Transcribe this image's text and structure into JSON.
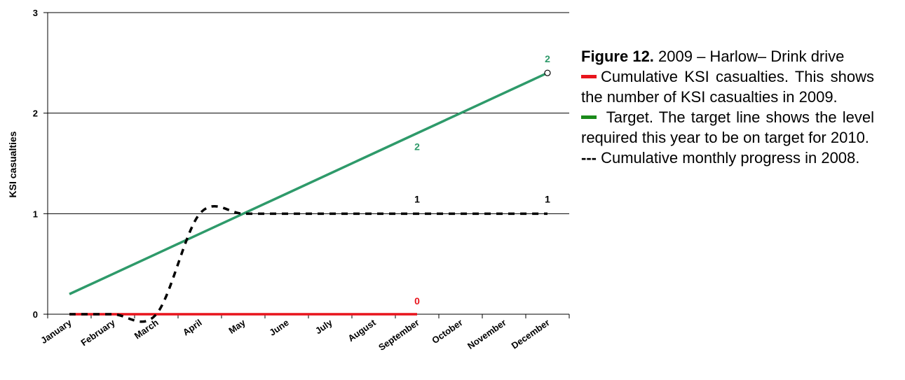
{
  "chart_data": {
    "type": "line",
    "categories": [
      "January",
      "February",
      "March",
      "April",
      "May",
      "June",
      "July",
      "August",
      "September",
      "October",
      "November",
      "December"
    ],
    "ylabel": "KSI casualties",
    "ylim": [
      0,
      3
    ],
    "yticks": [
      "0",
      "1",
      "2",
      "3"
    ],
    "grid": true,
    "series": [
      {
        "name": "Cumulative KSI casualties",
        "color": "#e8141c",
        "style": "solid",
        "values": [
          0,
          0,
          0,
          0,
          0,
          0,
          0,
          0,
          0,
          null,
          null,
          null
        ],
        "end_label": "0"
      },
      {
        "name": "Target",
        "color": "#2e9a6a",
        "style": "solid",
        "values": [
          0.2,
          0.4,
          0.6,
          0.8,
          1.0,
          1.2,
          1.4,
          1.6,
          1.8,
          2.0,
          2.2,
          2.4
        ],
        "point_labels": [
          {
            "category": "September",
            "text": "2"
          },
          {
            "category": "December",
            "text": "2"
          }
        ]
      },
      {
        "name": "Cumulative monthly progress",
        "color": "#000000",
        "style": "dashed",
        "values": [
          0,
          0,
          0,
          1,
          1,
          1,
          1,
          1,
          1,
          1,
          1,
          1
        ],
        "point_labels": [
          {
            "category": "September",
            "text": "1"
          },
          {
            "category": "December",
            "text": "1"
          }
        ]
      }
    ]
  },
  "caption": {
    "figure_number": "Figure 12.",
    "figure_title": " 2009 – Harlow– Drink drive",
    "legend_items": [
      {
        "color": "#e8141c",
        "text": "Cumulative KSI casualties. This shows the number of KSI casualties in 2009."
      },
      {
        "color": "#1a8a1a",
        "text": " Target. The target line shows the level required this year to be on target for 2010."
      }
    ],
    "dash_key": "---",
    "dash_text": " Cumulative monthly progress in 2008."
  }
}
